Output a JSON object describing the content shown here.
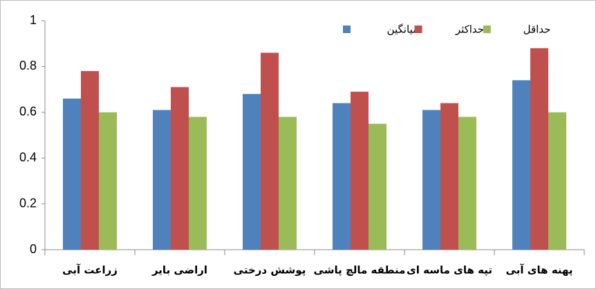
{
  "chart_data": {
    "type": "bar",
    "categories": [
      "زراعت آبی",
      "اراضی بایر",
      "پوشش درختی",
      "منطقه مالچ پاشی",
      "تپه های ماسه ای",
      "پهنه های آبی"
    ],
    "series": [
      {
        "name": "میانگین",
        "color": "#4f81bd",
        "values": [
          0.66,
          0.61,
          0.68,
          0.64,
          0.61,
          0.74
        ]
      },
      {
        "name": "حداکثر",
        "color": "#c0504d",
        "values": [
          0.78,
          0.71,
          0.86,
          0.69,
          0.64,
          0.88
        ]
      },
      {
        "name": "حداقل",
        "color": "#9bbb59",
        "values": [
          0.6,
          0.58,
          0.58,
          0.55,
          0.58,
          0.6
        ]
      }
    ],
    "ylim": [
      0,
      1
    ],
    "yticks": [
      0,
      0.2,
      0.4,
      0.6,
      0.8,
      1
    ],
    "grid": false,
    "legend": "top-right"
  }
}
